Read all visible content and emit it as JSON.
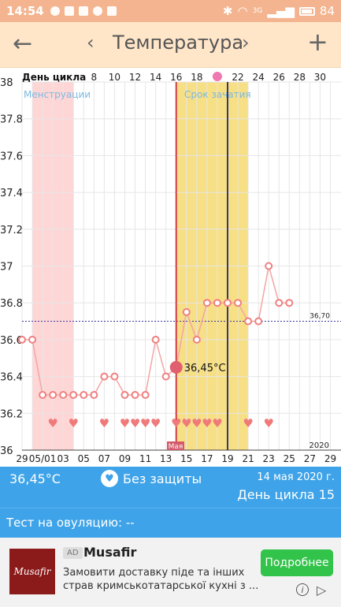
{
  "status": {
    "time": "14:54",
    "network": "3G",
    "battery": "84"
  },
  "appbar": {
    "title": "Температура",
    "back": "←",
    "prev": "‹",
    "next": "›",
    "add": "+"
  },
  "chart_data": {
    "type": "line",
    "ylim": [
      36,
      38
    ],
    "yticks": [
      "38",
      "37.8",
      "37.6",
      "37.4",
      "37.2",
      "37",
      "36.8",
      "36.6",
      "36.4",
      "36.2",
      "36"
    ],
    "cycle_label": "День цикла",
    "cycle_ticks": [
      "8",
      "10",
      "12",
      "14",
      "16",
      "18",
      "22",
      "24",
      "26",
      "28",
      "30"
    ],
    "date_ticks": [
      "29",
      "05/01",
      "03",
      "05",
      "07",
      "09",
      "11",
      "13",
      "15",
      "17",
      "19",
      "21",
      "23",
      "25",
      "27",
      "29"
    ],
    "month_label": "Мая",
    "year_label": "2020",
    "menstruation_label": "Менструации",
    "fertile_label": "Срок зачатия",
    "coverline_value": "36,70",
    "selected_label": "36,45°C",
    "temperatures": [
      36.6,
      36.6,
      36.3,
      36.3,
      36.3,
      36.3,
      36.3,
      36.3,
      36.4,
      36.4,
      36.3,
      36.3,
      36.3,
      36.6,
      36.4,
      36.45,
      36.75,
      36.6,
      36.8,
      36.8,
      36.8,
      36.8,
      36.7,
      36.7,
      37.0,
      36.8,
      36.8
    ],
    "heart_days": [
      3,
      5,
      8,
      10,
      11,
      12,
      13,
      15,
      16,
      17,
      18,
      19,
      22,
      24
    ],
    "colors": {
      "menstruation": "#ffd6d6",
      "fertile": "#f7df85",
      "series": "#f08080",
      "selected": "#e06070",
      "coverline": "#3a3aa0",
      "today": "#d33a4a",
      "ovulation": "#3a3a6a"
    }
  },
  "info": {
    "temp": "36,45°C",
    "protection": "Без защиты",
    "date": "14 мая 2020 г.",
    "cycle_day": "День цикла 15"
  },
  "test": {
    "label": "Тест на овуляцию: --"
  },
  "ad": {
    "logo": "Musafir",
    "badge": "AD",
    "brand": "Musafir",
    "description": "Замовити доставку піде та інших страв кримськотатарської кухні з ...",
    "cta": "Подробнее",
    "info_icon": "i",
    "play_icon": "▷"
  }
}
